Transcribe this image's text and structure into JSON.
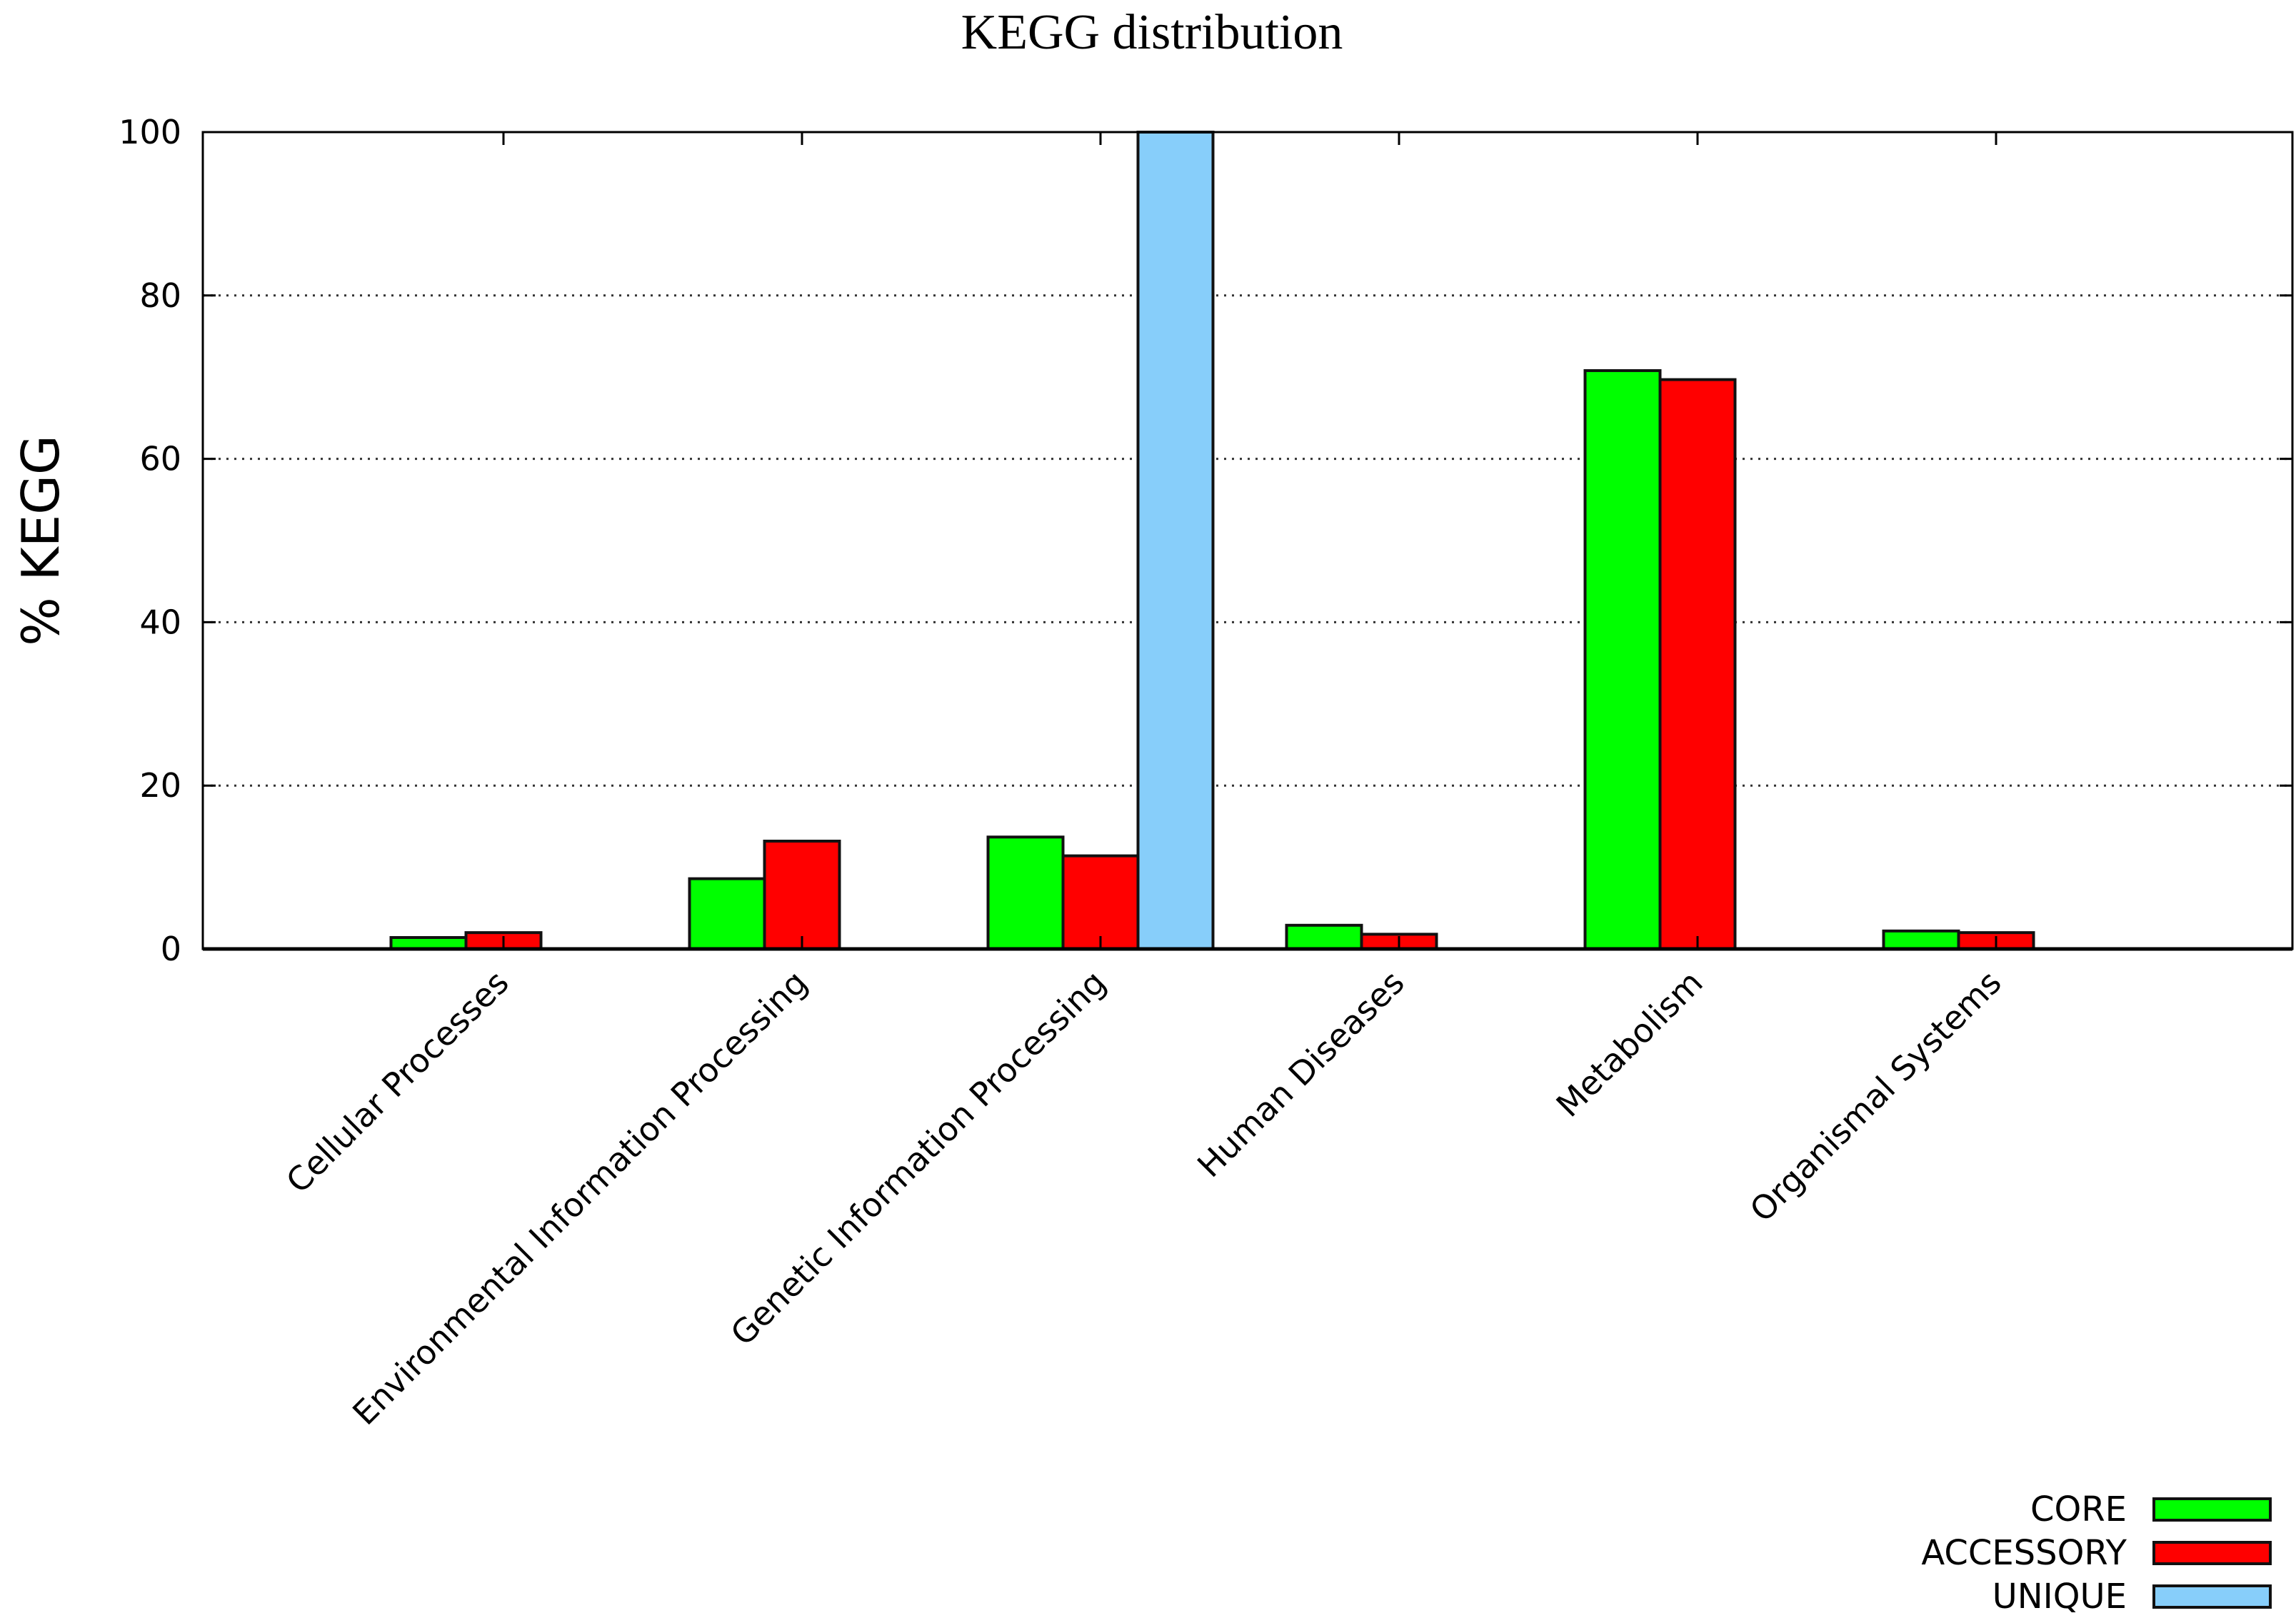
{
  "chart_data": {
    "type": "bar",
    "title": "KEGG distribution",
    "xlabel": "",
    "ylabel": "% KEGG",
    "ylim": [
      0,
      100
    ],
    "yticks": [
      0,
      20,
      40,
      60,
      80,
      100
    ],
    "grid": true,
    "legend_position": "bottom-right",
    "categories": [
      "Cellular Processes",
      "Environmental Information Processing",
      "Genetic Information Processing",
      "Human Diseases",
      "Metabolism",
      "Organismal Systems"
    ],
    "series": [
      {
        "name": "CORE",
        "color": "#00ff00",
        "values": [
          1.4,
          8.6,
          13.7,
          2.9,
          70.8,
          2.2
        ]
      },
      {
        "name": "ACCESSORY",
        "color": "#ff0000",
        "values": [
          2.0,
          13.2,
          11.4,
          1.8,
          69.7,
          2.0
        ]
      },
      {
        "name": "UNIQUE",
        "color": "#87cefa",
        "values": [
          0,
          0,
          100,
          0,
          0,
          0
        ]
      }
    ]
  }
}
